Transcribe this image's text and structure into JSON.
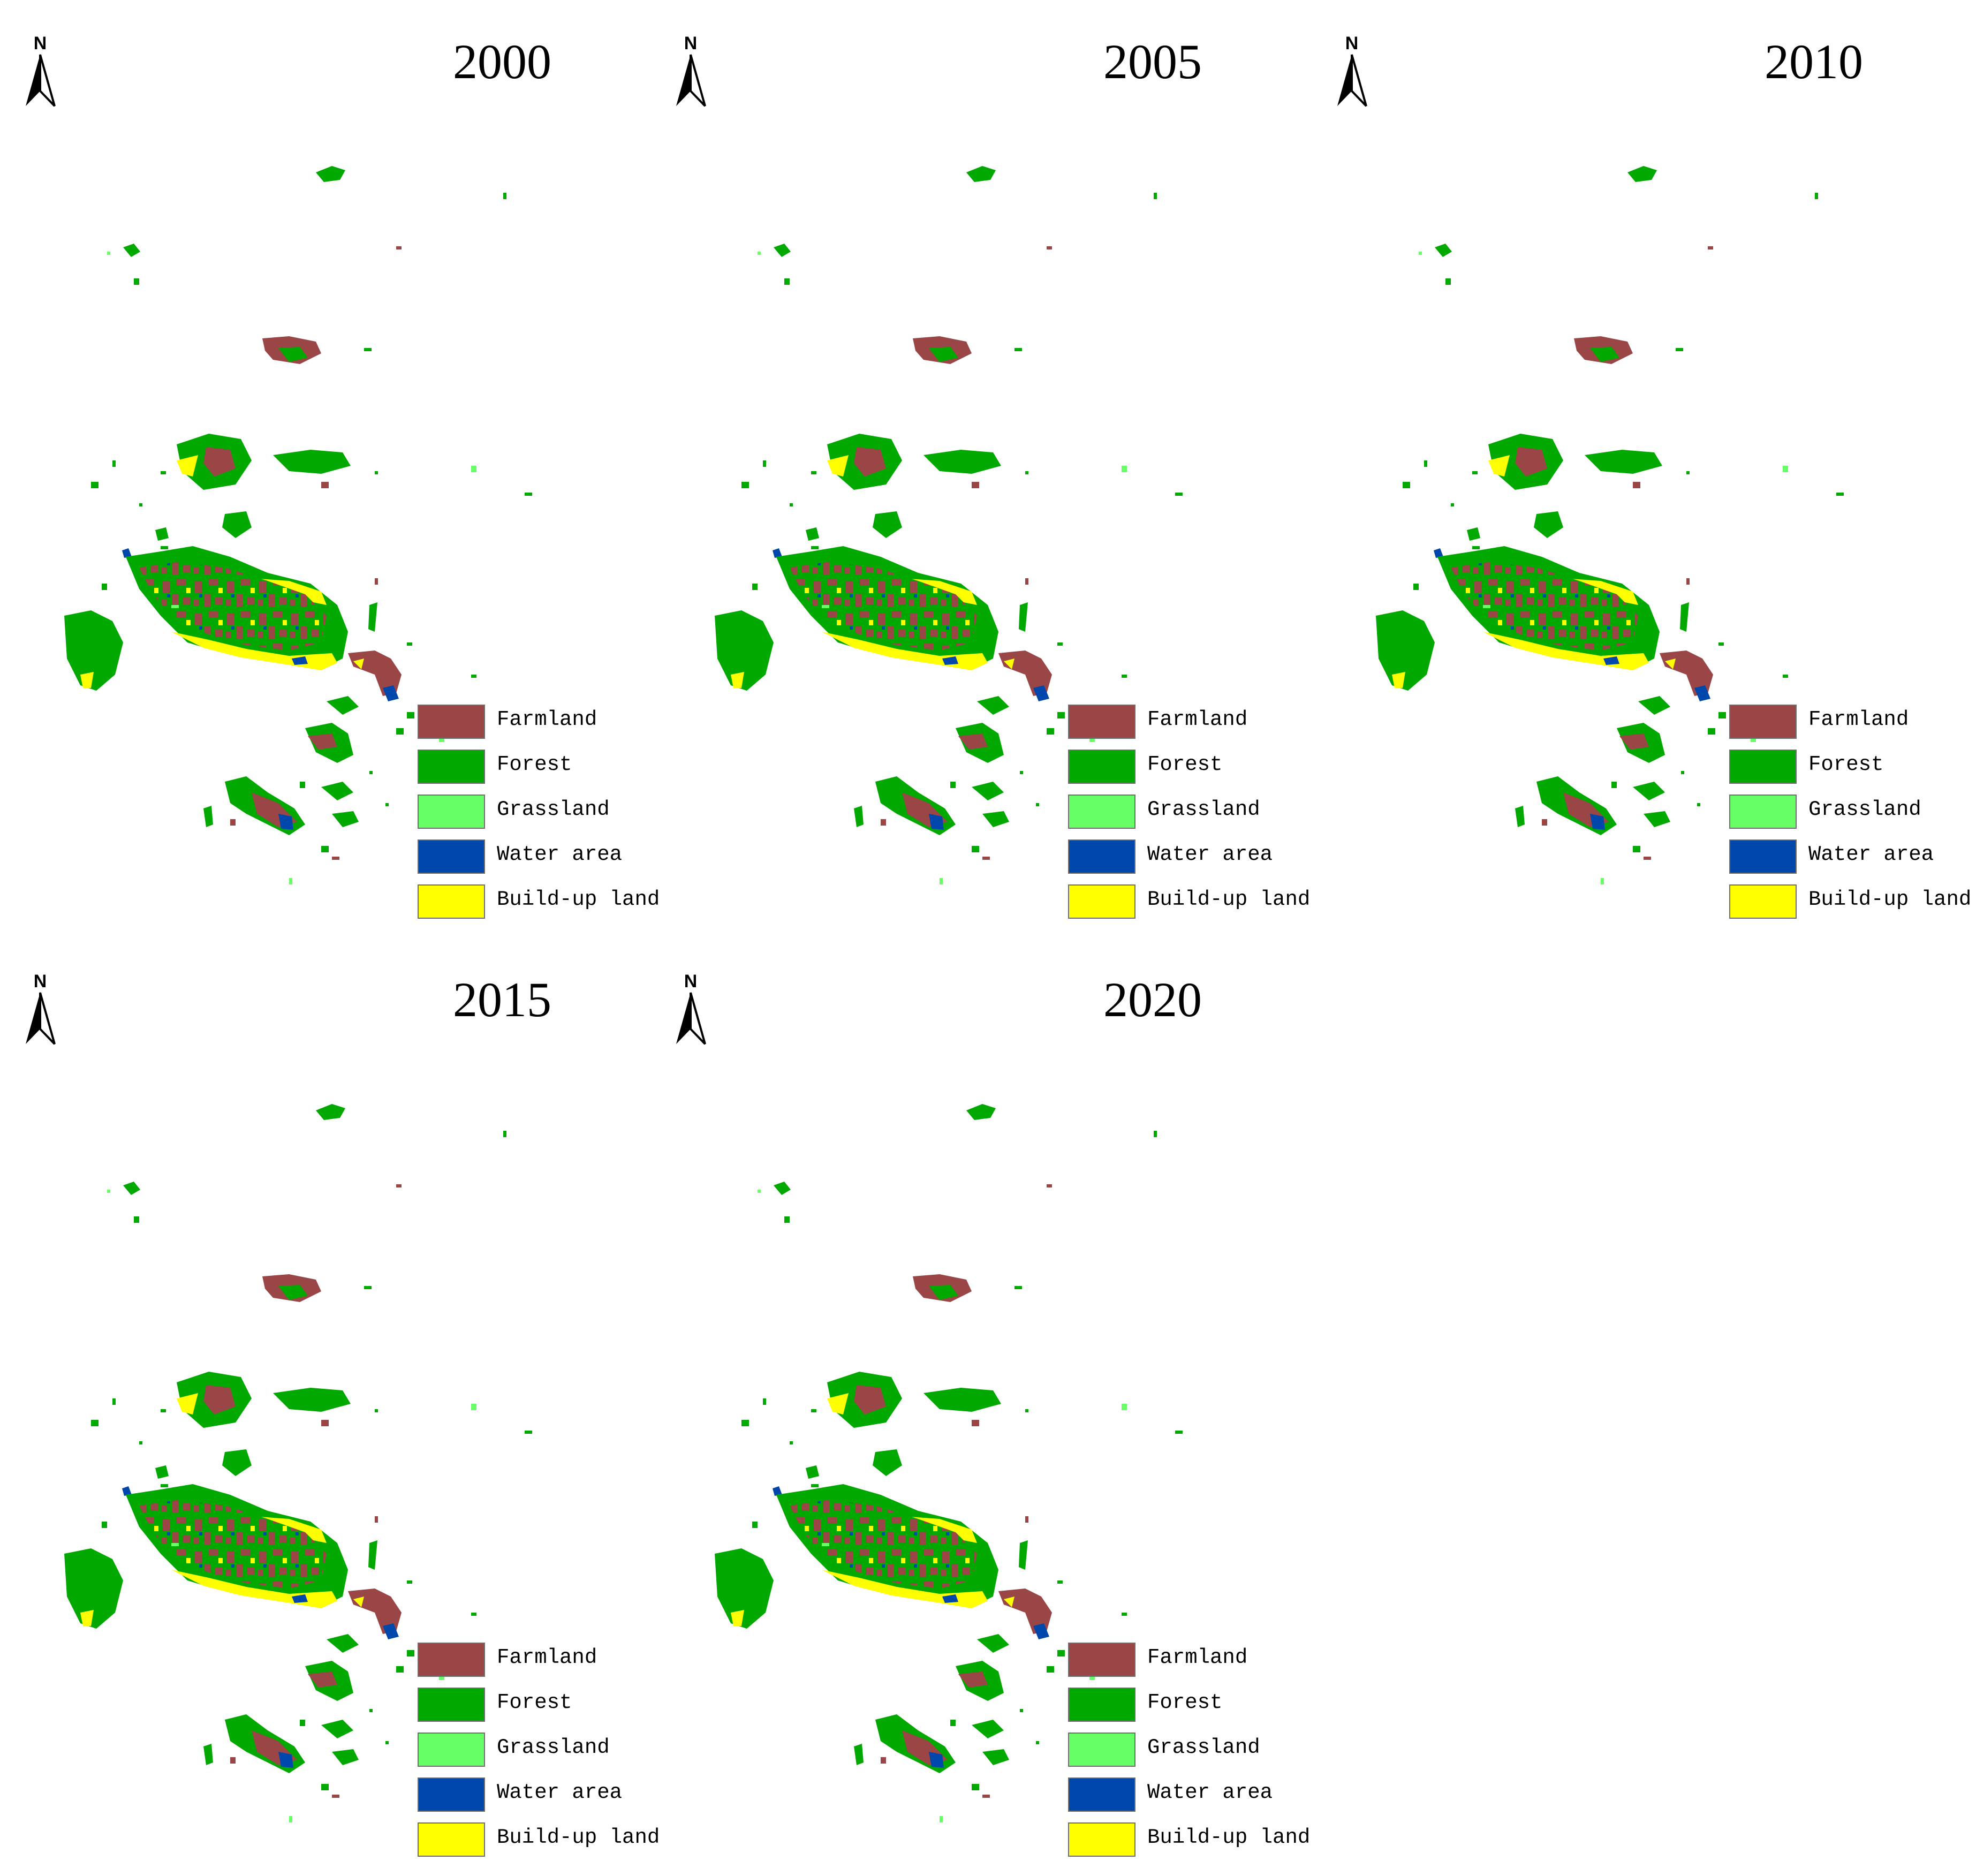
{
  "colors": {
    "farmland": "#9b4646",
    "forest": "#00a800",
    "grassland": "#66ff66",
    "water": "#0047ab",
    "buildup": "#ffff00"
  },
  "north_label": "N",
  "legend": [
    {
      "label": "Farmland",
      "key": "farmland"
    },
    {
      "label": "Forest",
      "key": "forest"
    },
    {
      "label": "Grassland",
      "key": "grassland"
    },
    {
      "label": "Water area",
      "key": "water"
    },
    {
      "label": "Build-up land",
      "key": "buildup"
    }
  ],
  "maps": [
    {
      "year": "2000"
    },
    {
      "year": "2005"
    },
    {
      "year": "2010"
    },
    {
      "year": "2015"
    },
    {
      "year": "2020"
    }
  ]
}
